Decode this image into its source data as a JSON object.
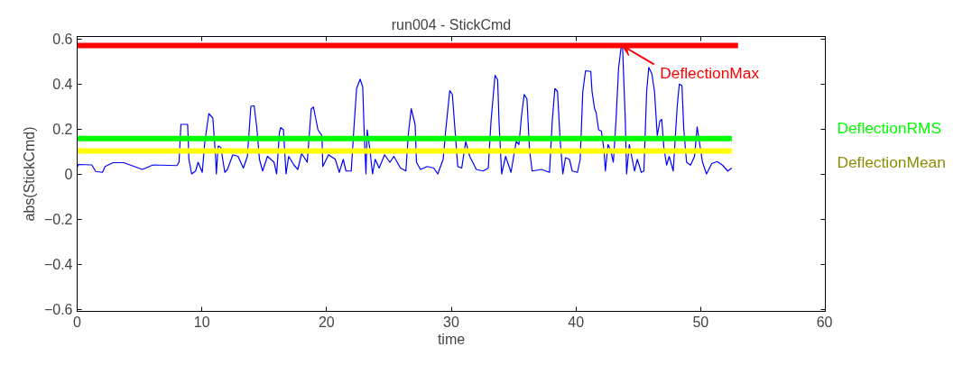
{
  "chart_data": {
    "type": "line",
    "title": "run004 - StickCmd",
    "xlabel": "time",
    "ylabel": "abs(StickCmd)",
    "xlim": [
      0,
      60
    ],
    "xticks": [
      0,
      10,
      20,
      30,
      40,
      50,
      60
    ],
    "ylim": [
      -0.61,
      0.61
    ],
    "yticks": [
      -0.6,
      -0.4,
      -0.2,
      0,
      0.2,
      0.4,
      0.6
    ],
    "grid": false,
    "tick_labels": "xy",
    "series": [
      {
        "color": "#0000ff",
        "x": [
          0,
          0.1,
          1.17,
          1.49,
          2.03,
          2.24,
          2.88,
          3.73,
          5.23,
          6.08,
          8.0,
          8.17,
          8.32,
          8.86,
          8.96,
          9.18,
          9.5,
          9.7,
          10.03,
          10.24,
          10.56,
          10.88,
          11.1,
          11.16,
          11.31,
          11.52,
          11.84,
          12.05,
          12.48,
          12.9,
          13.33,
          13.65,
          13.93,
          14.19,
          14.4,
          14.62,
          14.87,
          15.26,
          15.79,
          16.0,
          16.22,
          16.32,
          16.54,
          16.75,
          16.96,
          17.39,
          17.7,
          18.0,
          18.45,
          18.77,
          18.95,
          19.31,
          19.63,
          19.7,
          20.16,
          20.7,
          21.02,
          21.34,
          21.56,
          21.98,
          22.2,
          22.41,
          22.69,
          22.9,
          23.01,
          23.16,
          23.26,
          23.48,
          23.69,
          23.9,
          24.22,
          24.65,
          25.08,
          25.4,
          25.93,
          26.36,
          26.57,
          26.79,
          27.1,
          27.21,
          27.53,
          28.07,
          28.6,
          28.92,
          29.35,
          29.56,
          29.88,
          30.09,
          30.3,
          30.52,
          30.84,
          31.16,
          31.48,
          32.01,
          32.55,
          32.97,
          33.19,
          33.51,
          33.72,
          33.83,
          34.04,
          34.36,
          34.79,
          35.21,
          35.43,
          35.64,
          35.85,
          36.07,
          36.28,
          36.49,
          37.24,
          37.88,
          38.1,
          38.31,
          38.52,
          38.74,
          38.95,
          39.16,
          39.48,
          39.7,
          40.12,
          40.34,
          40.55,
          40.77,
          41.19,
          41.29,
          41.5,
          41.61,
          41.82,
          42.04,
          42.25,
          42.36,
          42.57,
          42.78,
          43.0,
          43.21,
          43.42,
          43.64,
          43.74,
          43.96,
          44.06,
          44.28,
          44.7,
          44.92,
          45.24,
          45.45,
          45.67,
          45.84,
          46.09,
          46.3,
          46.52,
          46.73,
          46.88,
          47.05,
          47.27,
          47.48,
          47.8,
          48.12,
          48.29,
          48.5,
          48.65,
          48.87,
          49.19,
          49.51,
          49.72,
          49.93,
          50.15,
          50.47,
          50.89,
          51.32,
          51.75,
          52.17,
          52.49
        ],
        "values": [
          0.03,
          0.042,
          0.04,
          0.011,
          0.007,
          0.033,
          0.05,
          0.05,
          0.02,
          0.04,
          0.037,
          0.052,
          0.22,
          0.22,
          0.065,
          0,
          0.013,
          0.052,
          0.007,
          0.144,
          0.268,
          0.248,
          0.078,
          0,
          0.124,
          0.118,
          0.007,
          0.02,
          0.085,
          0.078,
          0.026,
          0.078,
          0.3,
          0.303,
          0.209,
          0.065,
          0.013,
          0.078,
          0.052,
          0,
          0.183,
          0.206,
          0.196,
          0,
          0.078,
          0.039,
          0.02,
          0.091,
          0.052,
          0.288,
          0.297,
          0.196,
          0.17,
          0.033,
          0.085,
          0.065,
          0.007,
          0.065,
          0.013,
          0.013,
          0.209,
          0.379,
          0.421,
          0.386,
          0.196,
          0,
          0.196,
          0.105,
          0,
          0.065,
          0.026,
          0.085,
          0.052,
          0.078,
          0.026,
          0.013,
          0.183,
          0.29,
          0.22,
          0.052,
          0.02,
          0.033,
          0.026,
          0,
          0.065,
          0.196,
          0.37,
          0.353,
          0.196,
          0.033,
          0.026,
          0.144,
          0.078,
          0.02,
          0.013,
          0.026,
          0.235,
          0.438,
          0.418,
          0.235,
          0,
          0.078,
          0.007,
          0.144,
          0.131,
          0.261,
          0.353,
          0.333,
          0.105,
          0.013,
          0.02,
          0.007,
          0.235,
          0.379,
          0.366,
          0.144,
          0,
          0.072,
          0.065,
          0.013,
          0.007,
          0.065,
          0.366,
          0.458,
          0.455,
          0.366,
          0.288,
          0.275,
          0.196,
          0.19,
          0.105,
          0.013,
          0.131,
          0.105,
          0.052,
          0.235,
          0.47,
          0.57,
          0.56,
          0.235,
          0,
          0.131,
          0.013,
          0.065,
          0.007,
          0.013,
          0.366,
          0.473,
          0.444,
          0.366,
          0.17,
          0.235,
          0.242,
          0.118,
          0.039,
          0.078,
          0.013,
          0.3,
          0.399,
          0.392,
          0.196,
          0.052,
          0.039,
          0.078,
          0.209,
          0.131,
          0.052,
          0,
          0.046,
          0.055,
          0.039,
          0.013,
          0.026
        ]
      },
      {
        "color": "#ff0000",
        "x": [
          0,
          53.0
        ],
        "values": [
          0.57,
          0.57
        ]
      },
      {
        "name": "DeflectionRMS",
        "color": "#00ff00",
        "x": [
          0,
          52.5
        ],
        "values": [
          0.157,
          0.157
        ]
      },
      {
        "name": "DeflectionMean",
        "color": "#ffff00",
        "x": [
          0,
          52.5
        ],
        "values": [
          0.102,
          0.102
        ]
      }
    ],
    "annotations": [
      {
        "text": "DeflectionMax",
        "x": 43.7,
        "y": 0.57
      }
    ]
  }
}
